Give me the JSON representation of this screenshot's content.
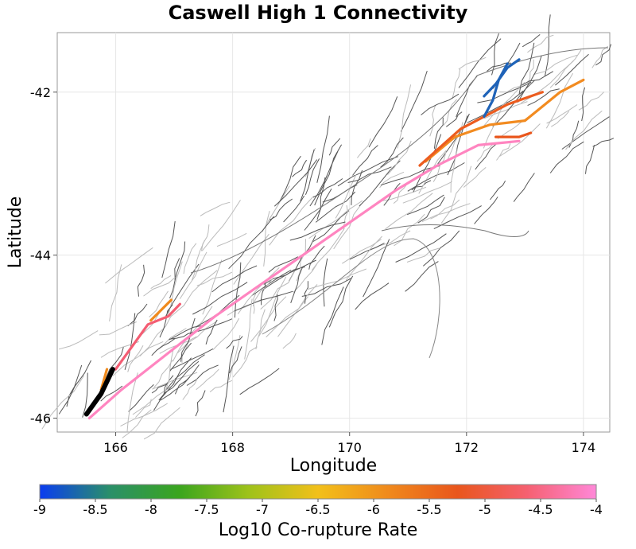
{
  "title": "Caswell High 1 Connectivity",
  "x_axis": {
    "label": "Longitude",
    "ticks": [
      {
        "v": 166,
        "t": "166"
      },
      {
        "v": 168,
        "t": "168"
      },
      {
        "v": 170,
        "t": "170"
      },
      {
        "v": 172,
        "t": "172"
      },
      {
        "v": 174,
        "t": "174"
      }
    ],
    "range": [
      165.0,
      174.45
    ]
  },
  "y_axis": {
    "label": "Latitude",
    "ticks": [
      {
        "v": -42,
        "t": "-42"
      },
      {
        "v": -44,
        "t": "-44"
      },
      {
        "v": -46,
        "t": "-46"
      }
    ],
    "range": [
      -46.17,
      -41.27
    ]
  },
  "colorbar": {
    "label": "Log10 Co-rupture Rate",
    "ticks": [
      "-9",
      "-8.5",
      "-8",
      "-7.5",
      "-7",
      "-6.5",
      "-6",
      "-5.5",
      "-5",
      "-4.5",
      "-4"
    ],
    "colors": [
      "#0a3cf0",
      "#2a8f6a",
      "#3aa51e",
      "#9ec21a",
      "#f2c01a",
      "#f08a1c",
      "#e9561c",
      "#f56070",
      "#ff88d8"
    ]
  },
  "highlighted_ruptures": [
    {
      "rate": -4.2,
      "color": "#ff85c0",
      "path": [
        [
          165.55,
          -46.0
        ],
        [
          166.1,
          -45.65
        ],
        [
          166.9,
          -45.2
        ],
        [
          167.7,
          -44.75
        ],
        [
          168.5,
          -44.35
        ],
        [
          169.2,
          -44.0
        ],
        [
          170.0,
          -43.6
        ],
        [
          170.8,
          -43.2
        ],
        [
          171.5,
          -42.9
        ],
        [
          172.2,
          -42.65
        ],
        [
          172.9,
          -42.6
        ]
      ]
    },
    {
      "rate": -4.9,
      "color": "#f45d73",
      "path": [
        [
          166.0,
          -45.4
        ],
        [
          166.3,
          -45.1
        ],
        [
          166.55,
          -44.85
        ],
        [
          166.9,
          -44.75
        ],
        [
          167.1,
          -44.6
        ]
      ]
    },
    {
      "rate": -6.1,
      "color": "#f28b20",
      "path": [
        [
          171.3,
          -42.85
        ],
        [
          171.8,
          -42.55
        ],
        [
          172.4,
          -42.4
        ],
        [
          173.0,
          -42.35
        ],
        [
          173.6,
          -42.0
        ],
        [
          174.0,
          -41.85
        ]
      ]
    },
    {
      "rate": -5.5,
      "color": "#ec5c1f",
      "path": [
        [
          171.2,
          -42.9
        ],
        [
          171.9,
          -42.45
        ],
        [
          172.7,
          -42.15
        ],
        [
          173.3,
          -42.0
        ]
      ]
    },
    {
      "rate": -6.2,
      "color": "#f08a1c",
      "path": [
        [
          166.6,
          -44.8
        ],
        [
          166.95,
          -44.55
        ]
      ]
    },
    {
      "rate": -6.2,
      "color": "#f08a1c",
      "path": [
        [
          165.75,
          -45.65
        ],
        [
          165.85,
          -45.4
        ]
      ]
    },
    {
      "rate": -8.6,
      "color": "#1f63b8",
      "path": [
        [
          172.3,
          -42.05
        ],
        [
          172.5,
          -41.9
        ],
        [
          172.7,
          -41.7
        ],
        [
          172.9,
          -41.6
        ]
      ]
    },
    {
      "rate": -8.6,
      "color": "#1f63b8",
      "path": [
        [
          172.3,
          -42.3
        ],
        [
          172.45,
          -42.1
        ],
        [
          172.55,
          -41.85
        ],
        [
          172.7,
          -41.65
        ]
      ]
    },
    {
      "rate": -5.3,
      "color": "#e9561c",
      "path": [
        [
          172.5,
          -42.55
        ],
        [
          172.9,
          -42.55
        ],
        [
          173.1,
          -42.5
        ]
      ]
    }
  ],
  "target_fault": {
    "name": "Caswell High 1",
    "color": "#000000",
    "path": [
      [
        165.5,
        -45.95
      ],
      [
        165.75,
        -45.7
      ],
      [
        165.95,
        -45.4
      ]
    ]
  }
}
